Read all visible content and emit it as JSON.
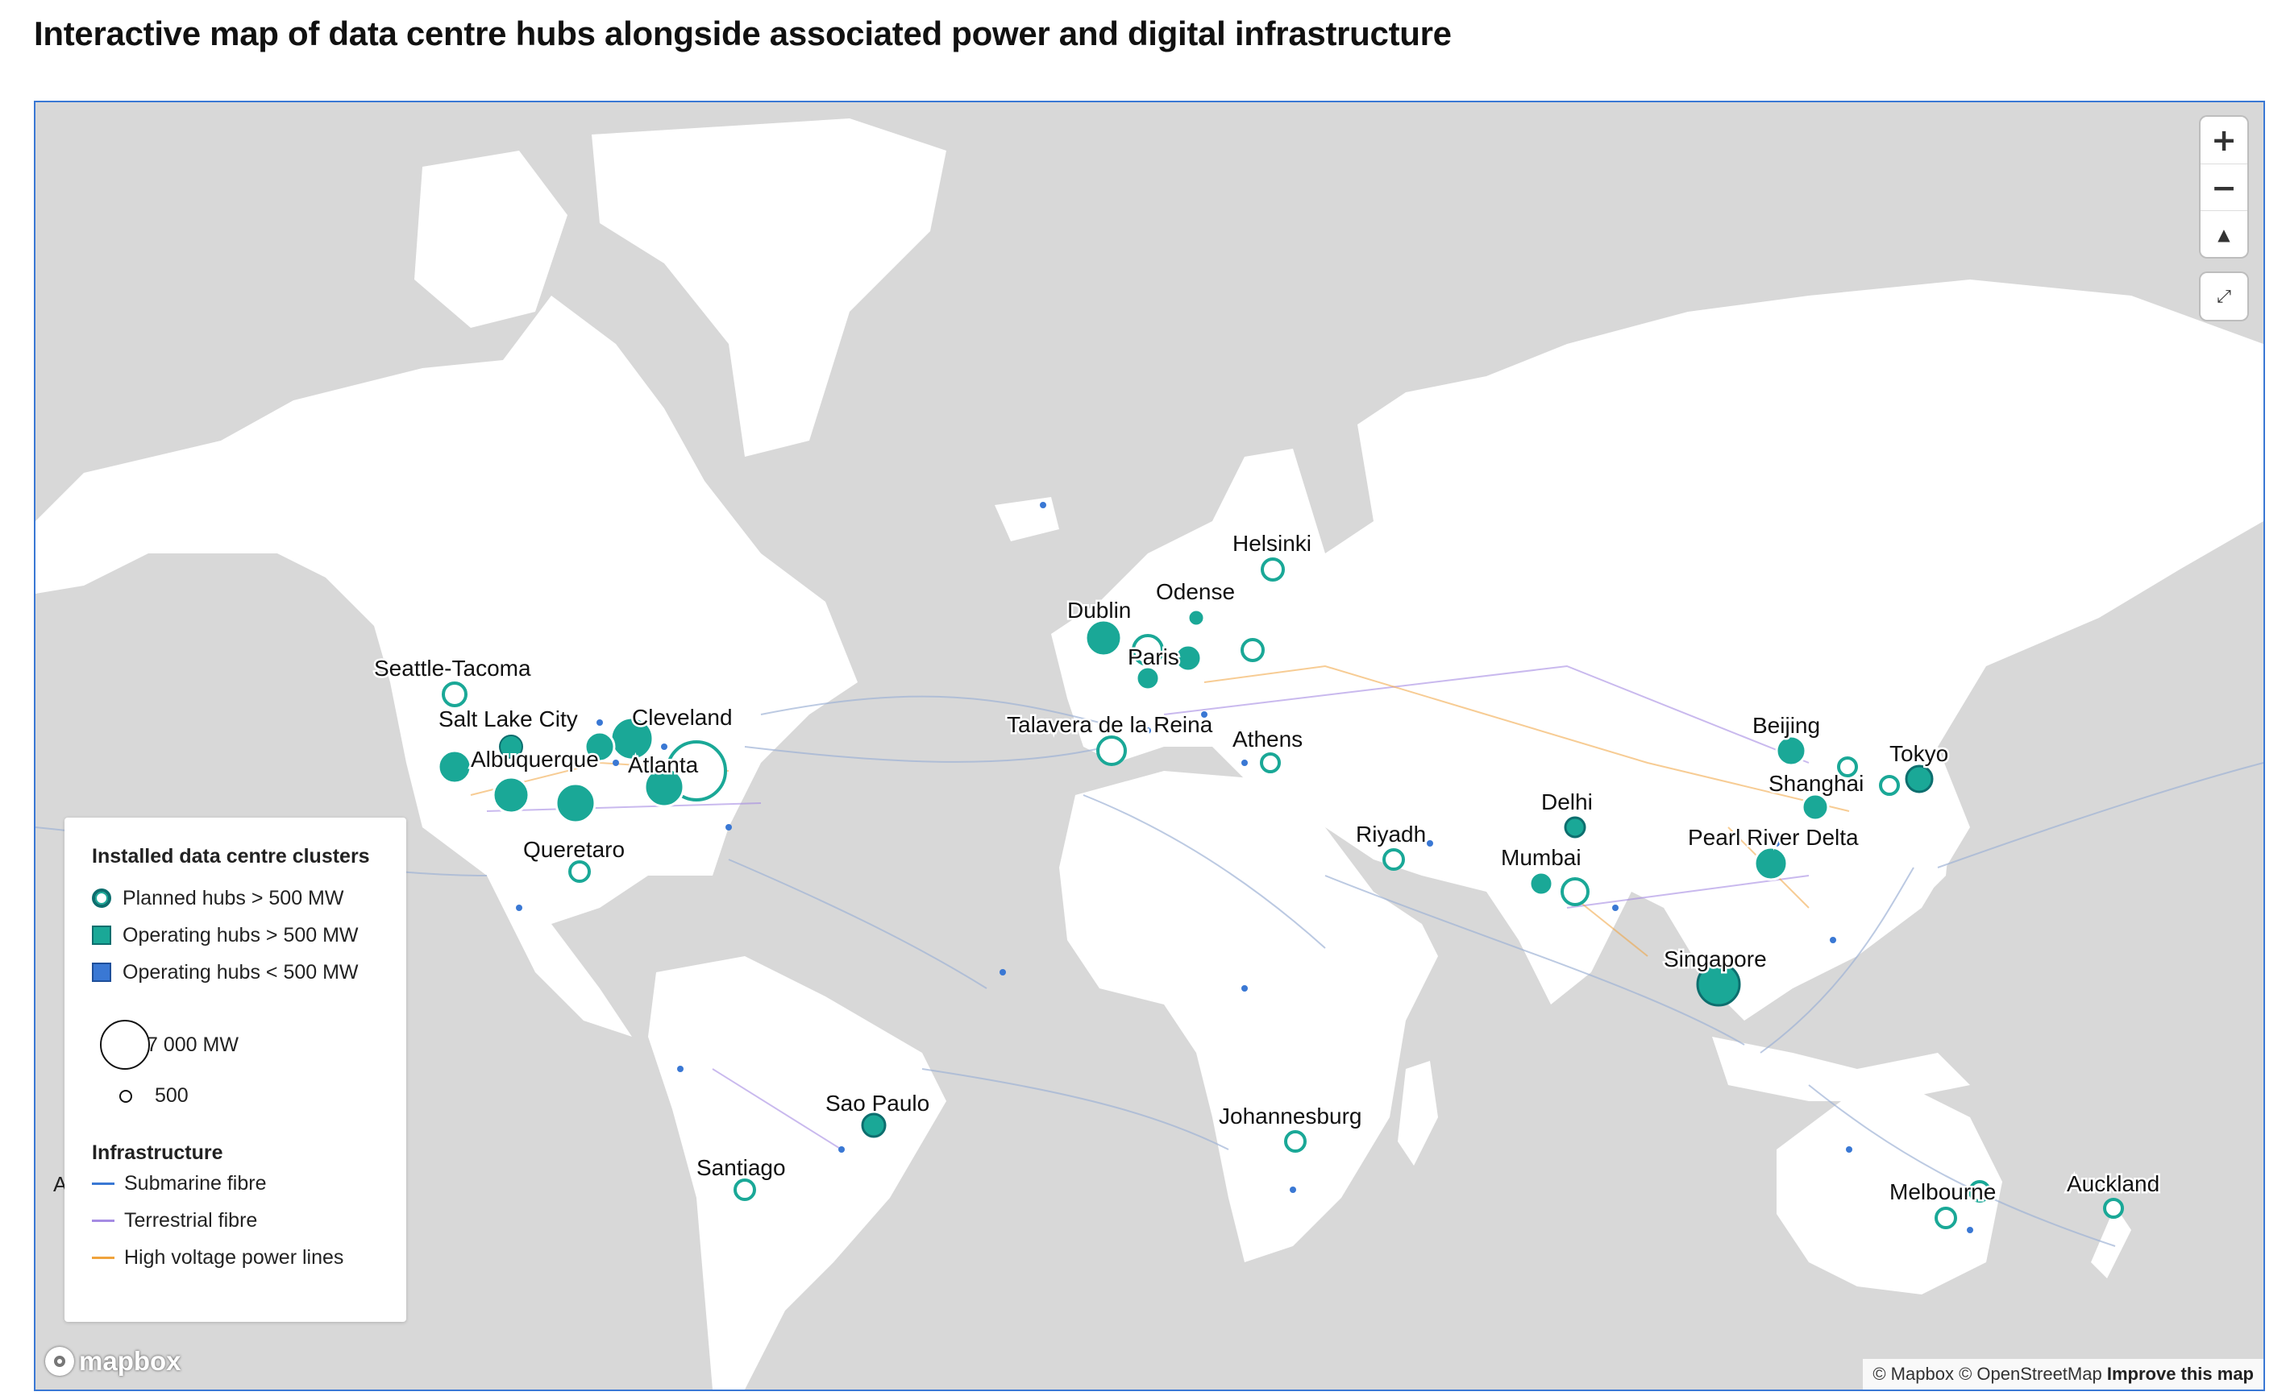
{
  "title": "Interactive map of data centre hubs alongside associated power and digital infrastructure",
  "colors": {
    "ocean": "#d8d8d8",
    "land": "#ffffff",
    "accent_teal": "#1aa897",
    "teal_dark": "#0d6e6e",
    "small_hub_blue": "#3a78d4",
    "submarine_fibre": "#3a78d4",
    "terrestrial_fibre": "#a58be3",
    "power_lines": "#f0a33c"
  },
  "controls": {
    "zoom_in": "+",
    "zoom_out": "−",
    "compass": "▲",
    "fullscreen": "⤢"
  },
  "legend": {
    "title": "Installed data centre clusters",
    "items": [
      {
        "label": "Planned hubs > 500 MW",
        "kind": "planned"
      },
      {
        "label": "Operating hubs > 500 MW",
        "kind": "operating-large"
      },
      {
        "label": "Operating hubs < 500 MW",
        "kind": "operating-small"
      }
    ],
    "sizes": [
      {
        "label": "7 000 MW"
      },
      {
        "label": "500"
      }
    ],
    "infra_title": "Infrastructure",
    "infra": [
      {
        "label": "Submarine fibre",
        "color": "#3a78d4"
      },
      {
        "label": "Terrestrial fibre",
        "color": "#a58be3"
      },
      {
        "label": "High voltage power lines",
        "color": "#f0a33c"
      }
    ]
  },
  "cities": [
    {
      "name": "Seattle-Tacoma"
    },
    {
      "name": "Salt Lake City"
    },
    {
      "name": "Cleveland"
    },
    {
      "name": "Albuquerque"
    },
    {
      "name": "Atlanta"
    },
    {
      "name": "Queretaro"
    },
    {
      "name": "Sao Paulo"
    },
    {
      "name": "Santiago"
    },
    {
      "name": "Dublin"
    },
    {
      "name": "Odense"
    },
    {
      "name": "Helsinki"
    },
    {
      "name": "Paris"
    },
    {
      "name": "Talavera de la Reina"
    },
    {
      "name": "Athens"
    },
    {
      "name": "Riyadh"
    },
    {
      "name": "Johannesburg"
    },
    {
      "name": "Delhi"
    },
    {
      "name": "Mumbai"
    },
    {
      "name": "Beijing"
    },
    {
      "name": "Shanghai"
    },
    {
      "name": "Tokyo"
    },
    {
      "name": "Pearl River Delta"
    },
    {
      "name": "Singapore"
    },
    {
      "name": "Melbourne"
    },
    {
      "name": "Auckland"
    }
  ],
  "attribution": {
    "mapbox": "© Mapbox",
    "osm": "© OpenStreetMap",
    "improve": "Improve this map"
  },
  "logo_text": "mapbox",
  "edge_label": "A"
}
